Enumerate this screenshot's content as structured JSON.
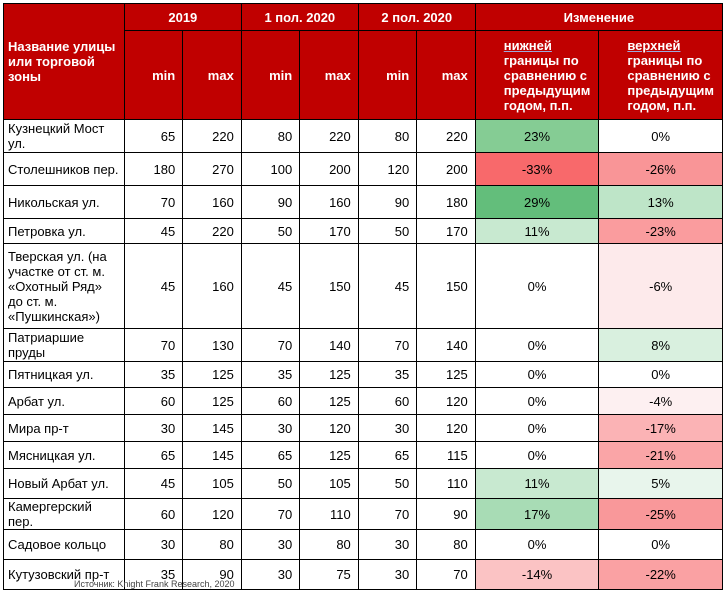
{
  "header": {
    "name_col": "Название улицы или торговой зоны",
    "period_2019": "2019",
    "period_h1_2020": "1 пол. 2020",
    "period_h2_2020": "2 пол. 2020",
    "change": "Изменение",
    "min": "min",
    "max": "max",
    "lower_change_word": "нижней",
    "lower_change_rest": "границы по сравнению с предыдущим годом, п.п.",
    "upper_change_word": "верхней",
    "upper_change_rest": "границы по сравнению с предыдущим годом, п.п."
  },
  "rows": [
    {
      "name": "Кузнецкий Мост ул.",
      "min2019": "65",
      "max2019": "220",
      "minH1": "80",
      "maxH1": "220",
      "minH2": "80",
      "maxH2": "220",
      "lower": "23%",
      "upper": "0%",
      "lower_color": "#85cc94",
      "upper_color": "#ffffff"
    },
    {
      "name": "Столешников пер.",
      "min2019": "180",
      "max2019": "270",
      "minH1": "100",
      "maxH1": "200",
      "minH2": "120",
      "maxH2": "200",
      "lower": "-33%",
      "upper": "-26%",
      "lower_color": "#f8696b",
      "upper_color": "#f99597"
    },
    {
      "name": "Никольская ул.",
      "min2019": "70",
      "max2019": "160",
      "minH1": "90",
      "maxH1": "160",
      "minH2": "90",
      "maxH2": "180",
      "lower": "29%",
      "upper": "13%",
      "lower_color": "#63be7b",
      "upper_color": "#bee5c8"
    },
    {
      "name": "Петровка ул.",
      "min2019": "45",
      "max2019": "220",
      "minH1": "50",
      "maxH1": "170",
      "minH2": "50",
      "maxH2": "170",
      "lower": "11%",
      "upper": "-23%",
      "lower_color": "#c8e9d0",
      "upper_color": "#fa9c9e"
    },
    {
      "name": "Тверская ул. (на участке от ст. м. «Охотный Ряд» до ст. м. «Пушкинская»)",
      "min2019": "45",
      "max2019": "160",
      "minH1": "45",
      "maxH1": "150",
      "minH2": "45",
      "maxH2": "150",
      "lower": "0%",
      "upper": "-6%",
      "lower_color": "#ffffff",
      "upper_color": "#fdeaeb"
    },
    {
      "name": "Патриаршие пруды",
      "min2019": "70",
      "max2019": "130",
      "minH1": "70",
      "maxH1": "140",
      "minH2": "70",
      "maxH2": "140",
      "lower": "0%",
      "upper": "8%",
      "lower_color": "#ffffff",
      "upper_color": "#d9f0df"
    },
    {
      "name": "Пятницкая ул.",
      "min2019": "35",
      "max2019": "125",
      "minH1": "35",
      "maxH1": "125",
      "minH2": "35",
      "maxH2": "125",
      "lower": "0%",
      "upper": "0%",
      "lower_color": "#ffffff",
      "upper_color": "#ffffff"
    },
    {
      "name": "Арбат ул.",
      "min2019": "60",
      "max2019": "125",
      "minH1": "60",
      "maxH1": "125",
      "minH2": "60",
      "maxH2": "120",
      "lower": "0%",
      "upper": "-4%",
      "lower_color": "#ffffff",
      "upper_color": "#fdf0f1"
    },
    {
      "name": "Мира пр-т",
      "min2019": "30",
      "max2019": "145",
      "minH1": "30",
      "maxH1": "120",
      "minH2": "30",
      "maxH2": "120",
      "lower": "0%",
      "upper": "-17%",
      "lower_color": "#ffffff",
      "upper_color": "#fbb3b5"
    },
    {
      "name": "Мясницкая ул.",
      "min2019": "65",
      "max2019": "145",
      "minH1": "65",
      "maxH1": "125",
      "minH2": "65",
      "maxH2": "115",
      "lower": "0%",
      "upper": "-21%",
      "lower_color": "#ffffff",
      "upper_color": "#faa5a7"
    },
    {
      "name": "Новый Арбат ул.",
      "min2019": "45",
      "max2019": "105",
      "minH1": "50",
      "maxH1": "105",
      "minH2": "50",
      "maxH2": "110",
      "lower": "11%",
      "upper": "5%",
      "lower_color": "#c8e9d0",
      "upper_color": "#e8f5ec"
    },
    {
      "name": "Камергерский пер.",
      "min2019": "60",
      "max2019": "120",
      "minH1": "70",
      "maxH1": "110",
      "minH2": "70",
      "maxH2": "90",
      "lower": "17%",
      "upper": "-25%",
      "lower_color": "#a8dcb5",
      "upper_color": "#f9989a"
    },
    {
      "name": "Садовое кольцо",
      "min2019": "30",
      "max2019": "80",
      "minH1": "30",
      "maxH1": "80",
      "minH2": "30",
      "maxH2": "80",
      "lower": "0%",
      "upper": "0%",
      "lower_color": "#ffffff",
      "upper_color": "#ffffff"
    },
    {
      "name": "Кутузовский пр-т",
      "min2019": "35",
      "max2019": "90",
      "minH1": "30",
      "maxH1": "75",
      "minH2": "30",
      "maxH2": "70",
      "lower": "-14%",
      "upper": "-22%",
      "lower_color": "#fbc3c4",
      "upper_color": "#faa1a3"
    }
  ],
  "footer": {
    "source": "Источник: Knight Frank Research, 2020"
  }
}
